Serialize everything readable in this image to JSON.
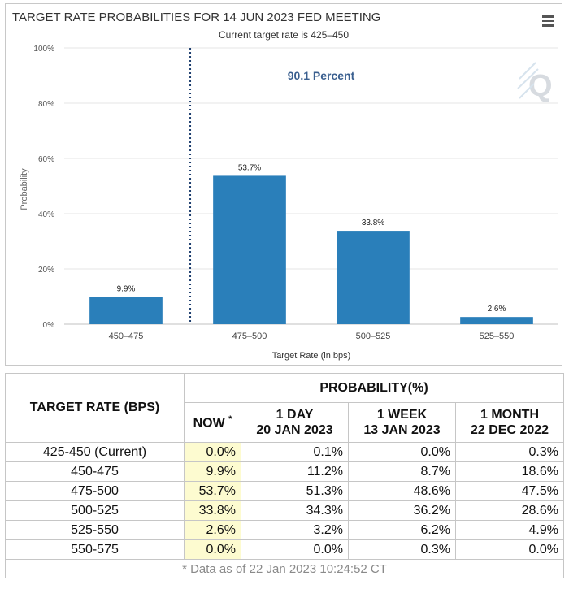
{
  "chart_data": {
    "type": "bar",
    "title": "TARGET RATE PROBABILITIES FOR 14 JUN 2023 FED MEETING",
    "subtitle": "Current target rate is 425–450",
    "xlabel": "Target Rate (in bps)",
    "ylabel": "Probability",
    "categories": [
      "450–475",
      "475–500",
      "500–525",
      "525–550"
    ],
    "values": [
      9.9,
      53.7,
      33.8,
      2.6
    ],
    "data_labels": [
      "9.9%",
      "53.7%",
      "33.8%",
      "2.6%"
    ],
    "ylim": [
      0,
      100
    ],
    "yticks": [
      0,
      20,
      40,
      60,
      80,
      100
    ],
    "ytick_labels": [
      "0%",
      "20%",
      "40%",
      "60%",
      "80%",
      "100%"
    ],
    "annotation": "90.1 Percent",
    "current_rate_marker_between": [
      "450–475 (left edge)"
    ],
    "bar_color": "#2a7fba",
    "grid": true
  },
  "table": {
    "header_prob": "PROBABILITY(%)",
    "header_rate": "TARGET RATE (BPS)",
    "header_now": "NOW",
    "header_now_mark": "*",
    "columns": [
      {
        "line1": "1 DAY",
        "line2": "20 JAN 2023"
      },
      {
        "line1": "1 WEEK",
        "line2": "13 JAN 2023"
      },
      {
        "line1": "1 MONTH",
        "line2": "22 DEC 2022"
      }
    ],
    "rows": [
      {
        "rate": "425-450 (Current)",
        "now": "0.0%",
        "day": "0.1%",
        "week": "0.0%",
        "month": "0.3%"
      },
      {
        "rate": "450-475",
        "now": "9.9%",
        "day": "11.2%",
        "week": "8.7%",
        "month": "18.6%"
      },
      {
        "rate": "475-500",
        "now": "53.7%",
        "day": "51.3%",
        "week": "48.6%",
        "month": "47.5%"
      },
      {
        "rate": "500-525",
        "now": "33.8%",
        "day": "34.3%",
        "week": "36.2%",
        "month": "28.6%"
      },
      {
        "rate": "525-550",
        "now": "2.6%",
        "day": "3.2%",
        "week": "6.2%",
        "month": "4.9%"
      },
      {
        "rate": "550-575",
        "now": "0.0%",
        "day": "0.0%",
        "week": "0.3%",
        "month": "0.0%"
      }
    ],
    "footer": "* Data as of 22 Jan 2023 10:24:52 CT"
  },
  "colors": {
    "bar": "#2a7fba",
    "annotation": "#3a5f8f",
    "now_highlight": "#fdfbd0"
  }
}
